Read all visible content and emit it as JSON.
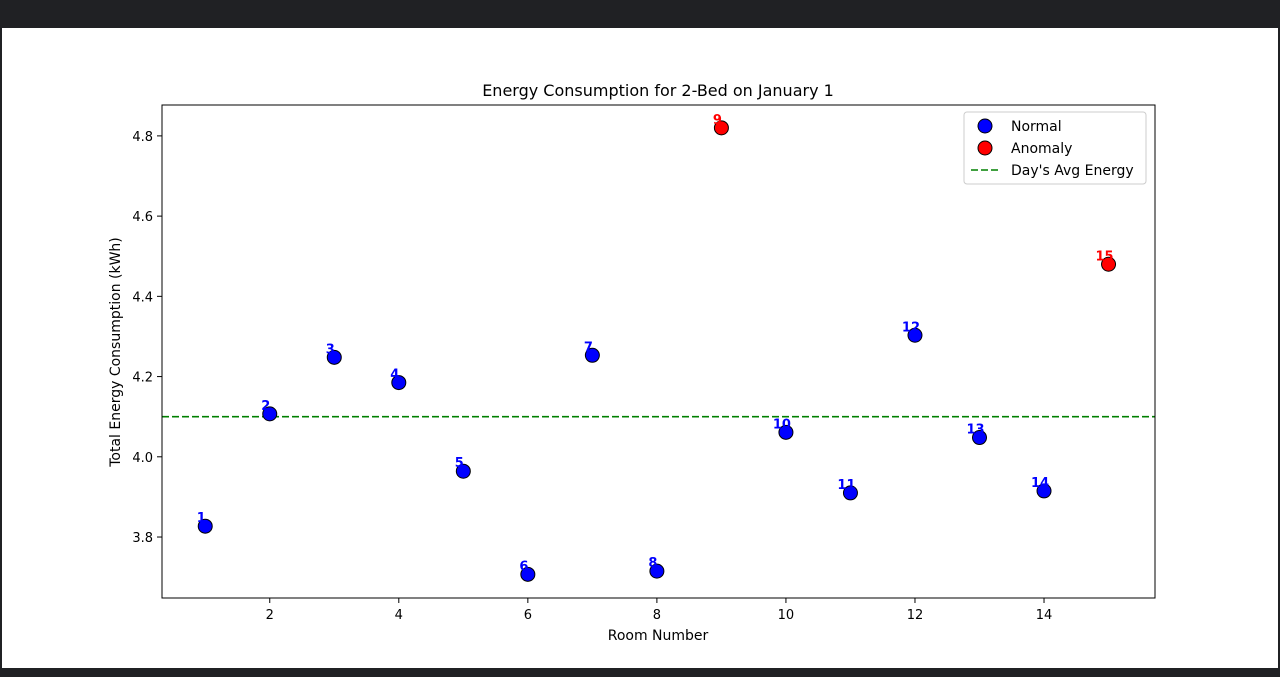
{
  "chart_data": {
    "type": "scatter",
    "title": "Energy Consumption for 2-Bed on January 1",
    "xlabel": "Room Number",
    "ylabel": "Total Energy Consumption (kWh)",
    "xlim": [
      0.33,
      15.72
    ],
    "ylim": [
      3.648,
      4.877
    ],
    "xticks": [
      2,
      4,
      6,
      8,
      10,
      12,
      14
    ],
    "yticks": [
      3.8,
      4.0,
      4.2,
      4.4,
      4.6,
      4.8
    ],
    "xtick_labels": [
      "2",
      "4",
      "6",
      "8",
      "10",
      "12",
      "14"
    ],
    "ytick_labels": [
      "3.8",
      "4.0",
      "4.2",
      "4.4",
      "4.6",
      "4.8"
    ],
    "grid": false,
    "legend_position": "top-right",
    "average_line": {
      "name": "Day's Avg Energy",
      "y": 4.1,
      "color": "#008000",
      "style": "dashed"
    },
    "series": [
      {
        "name": "Normal",
        "color": "#0000ff",
        "points": [
          {
            "x": 1,
            "y": 3.827,
            "label": "1"
          },
          {
            "x": 2,
            "y": 4.107,
            "label": "2"
          },
          {
            "x": 3,
            "y": 4.248,
            "label": "3"
          },
          {
            "x": 4,
            "y": 4.185,
            "label": "4"
          },
          {
            "x": 5,
            "y": 3.964,
            "label": "5"
          },
          {
            "x": 6,
            "y": 3.707,
            "label": "6"
          },
          {
            "x": 7,
            "y": 4.253,
            "label": "7"
          },
          {
            "x": 8,
            "y": 3.715,
            "label": "8"
          },
          {
            "x": 10,
            "y": 4.061,
            "label": "10"
          },
          {
            "x": 11,
            "y": 3.91,
            "label": "11"
          },
          {
            "x": 12,
            "y": 4.303,
            "label": "12"
          },
          {
            "x": 13,
            "y": 4.048,
            "label": "13"
          },
          {
            "x": 14,
            "y": 3.915,
            "label": "14"
          }
        ]
      },
      {
        "name": "Anomaly",
        "color": "#ff0000",
        "points": [
          {
            "x": 9,
            "y": 4.82,
            "label": "9"
          },
          {
            "x": 15,
            "y": 4.48,
            "label": "15"
          }
        ]
      }
    ]
  }
}
